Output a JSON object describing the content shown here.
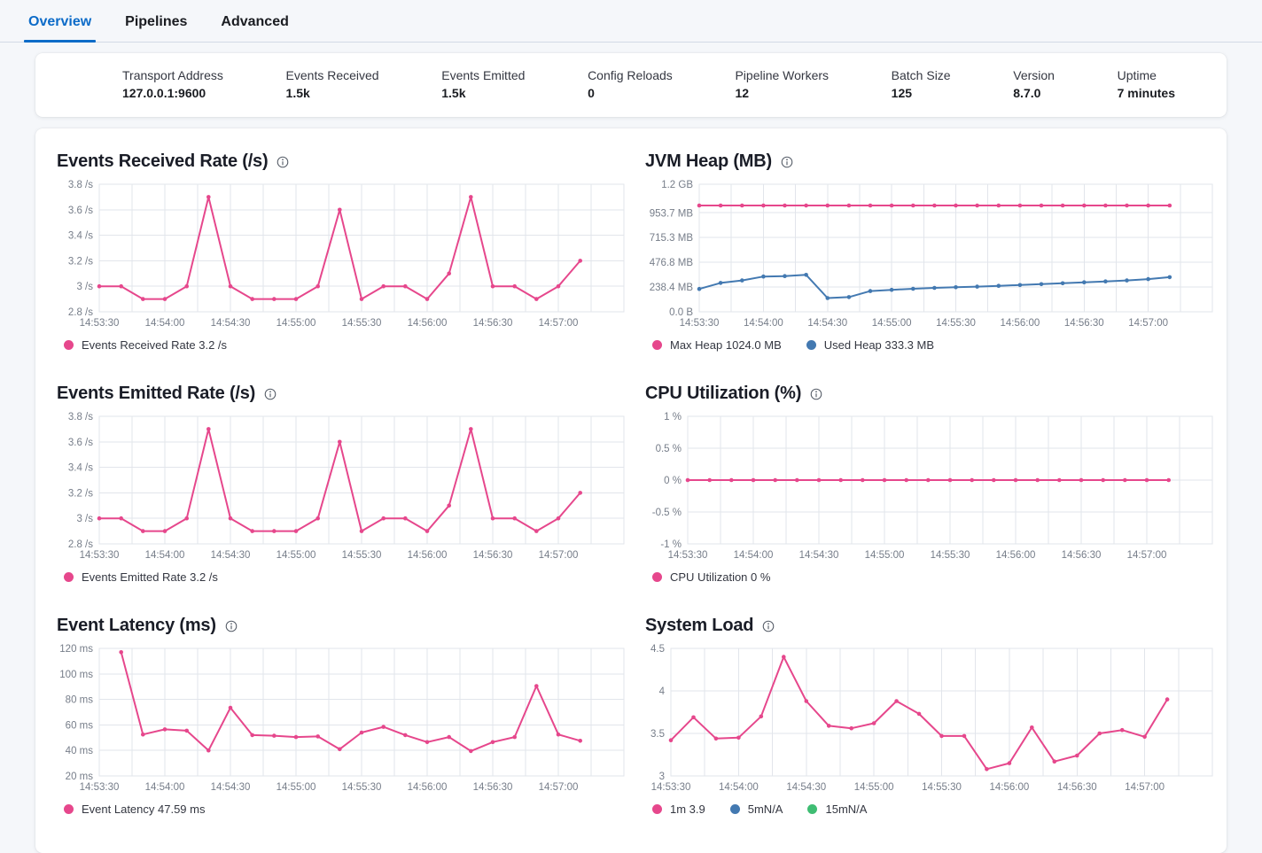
{
  "tabs": [
    {
      "label": "Overview",
      "active": true
    },
    {
      "label": "Pipelines",
      "active": false
    },
    {
      "label": "Advanced",
      "active": false
    }
  ],
  "stats": [
    {
      "label": "Transport Address",
      "value": "127.0.0.1:9600"
    },
    {
      "label": "Events Received",
      "value": "1.5k"
    },
    {
      "label": "Events Emitted",
      "value": "1.5k"
    },
    {
      "label": "Config Reloads",
      "value": "0"
    },
    {
      "label": "Pipeline Workers",
      "value": "12"
    },
    {
      "label": "Batch Size",
      "value": "125"
    },
    {
      "label": "Version",
      "value": "8.7.0"
    },
    {
      "label": "Uptime",
      "value": "7 minutes"
    }
  ],
  "colors": {
    "accent_pink": "#e6478c",
    "series_blue": "#4379b1",
    "series_green": "#3fbd73",
    "tab_active": "#0c6bc8",
    "grid": "#e2e5eb",
    "axis_text": "#767d89"
  },
  "x_axis": {
    "domain_seconds": [
      0,
      240
    ],
    "minor_grid_step": 15,
    "ticks": [
      {
        "s": 0,
        "label": "14:53:30"
      },
      {
        "s": 30,
        "label": "14:54:00"
      },
      {
        "s": 60,
        "label": "14:54:30"
      },
      {
        "s": 90,
        "label": "14:55:00"
      },
      {
        "s": 120,
        "label": "14:55:30"
      },
      {
        "s": 150,
        "label": "14:56:00"
      },
      {
        "s": 180,
        "label": "14:56:30"
      },
      {
        "s": 210,
        "label": "14:57:00"
      }
    ]
  },
  "chart_data": [
    {
      "type": "line",
      "title": "Events Received Rate (/s)",
      "ylim": [
        2.8,
        3.8
      ],
      "y_ticks": [
        {
          "v": 2.8,
          "label": "2.8 /s"
        },
        {
          "v": 3.0,
          "label": "3 /s"
        },
        {
          "v": 3.2,
          "label": "3.2 /s"
        },
        {
          "v": 3.4,
          "label": "3.4 /s"
        },
        {
          "v": 3.6,
          "label": "3.6 /s"
        },
        {
          "v": 3.8,
          "label": "3.8 /s"
        }
      ],
      "series": [
        {
          "name": "Events Received Rate",
          "color": "#e6478c",
          "start": 0,
          "step": 10,
          "values": [
            3,
            3,
            2.9,
            2.9,
            3,
            3.7,
            3,
            2.9,
            2.9,
            2.9,
            3,
            3.6,
            2.9,
            3,
            3,
            2.9,
            3.1,
            3.7,
            3,
            3,
            2.9,
            3,
            3.2
          ]
        }
      ],
      "legend": [
        {
          "label": "Events Received Rate 3.2 /s",
          "color": "#e6478c"
        }
      ]
    },
    {
      "type": "line",
      "title": "JVM Heap (MB)",
      "ylim": [
        0,
        1228.8
      ],
      "y_ticks": [
        {
          "v": 0,
          "label": "0.0 B"
        },
        {
          "v": 238.4,
          "label": "238.4 MB"
        },
        {
          "v": 476.8,
          "label": "476.8 MB"
        },
        {
          "v": 715.3,
          "label": "715.3 MB"
        },
        {
          "v": 953.7,
          "label": "953.7 MB"
        },
        {
          "v": 1228.8,
          "label": "1.2 GB"
        }
      ],
      "series": [
        {
          "name": "Max Heap",
          "color": "#e6478c",
          "start": 0,
          "step": 10,
          "values": [
            1024,
            1024,
            1024,
            1024,
            1024,
            1024,
            1024,
            1024,
            1024,
            1024,
            1024,
            1024,
            1024,
            1024,
            1024,
            1024,
            1024,
            1024,
            1024,
            1024,
            1024,
            1024,
            1024
          ]
        },
        {
          "name": "Used Heap",
          "color": "#4379b1",
          "start": 0,
          "step": 10,
          "values": [
            220,
            278,
            302,
            340,
            344,
            356,
            132,
            142,
            200,
            212,
            222,
            230,
            236,
            242,
            250,
            258,
            266,
            275,
            284,
            293,
            302,
            315,
            333.3
          ]
        }
      ],
      "legend": [
        {
          "label": "Max Heap 1024.0 MB",
          "color": "#e6478c"
        },
        {
          "label": "Used Heap 333.3 MB",
          "color": "#4379b1"
        }
      ]
    },
    {
      "type": "line",
      "title": "Events Emitted Rate (/s)",
      "ylim": [
        2.8,
        3.8
      ],
      "y_ticks": [
        {
          "v": 2.8,
          "label": "2.8 /s"
        },
        {
          "v": 3.0,
          "label": "3 /s"
        },
        {
          "v": 3.2,
          "label": "3.2 /s"
        },
        {
          "v": 3.4,
          "label": "3.4 /s"
        },
        {
          "v": 3.6,
          "label": "3.6 /s"
        },
        {
          "v": 3.8,
          "label": "3.8 /s"
        }
      ],
      "series": [
        {
          "name": "Events Emitted Rate",
          "color": "#e6478c",
          "start": 0,
          "step": 10,
          "values": [
            3,
            3,
            2.9,
            2.9,
            3,
            3.7,
            3,
            2.9,
            2.9,
            2.9,
            3,
            3.6,
            2.9,
            3,
            3,
            2.9,
            3.1,
            3.7,
            3,
            3,
            2.9,
            3,
            3.2
          ]
        }
      ],
      "legend": [
        {
          "label": "Events Emitted Rate 3.2 /s",
          "color": "#e6478c"
        }
      ]
    },
    {
      "type": "line",
      "title": "CPU Utilization (%)",
      "ylim": [
        -1,
        1
      ],
      "y_ticks": [
        {
          "v": -1,
          "label": "-1 %"
        },
        {
          "v": -0.5,
          "label": "-0.5 %"
        },
        {
          "v": 0,
          "label": "0 %"
        },
        {
          "v": 0.5,
          "label": "0.5 %"
        },
        {
          "v": 1,
          "label": "1 %"
        }
      ],
      "series": [
        {
          "name": "CPU Utilization",
          "color": "#e6478c",
          "start": 0,
          "step": 10,
          "values": [
            0,
            0,
            0,
            0,
            0,
            0,
            0,
            0,
            0,
            0,
            0,
            0,
            0,
            0,
            0,
            0,
            0,
            0,
            0,
            0,
            0,
            0,
            0
          ]
        }
      ],
      "legend": [
        {
          "label": "CPU Utilization 0 %",
          "color": "#e6478c"
        }
      ]
    },
    {
      "type": "line",
      "title": "Event Latency (ms)",
      "ylim": [
        20,
        120
      ],
      "y_ticks": [
        {
          "v": 20,
          "label": "20 ms"
        },
        {
          "v": 40,
          "label": "40 ms"
        },
        {
          "v": 60,
          "label": "60 ms"
        },
        {
          "v": 80,
          "label": "80 ms"
        },
        {
          "v": 100,
          "label": "100 ms"
        },
        {
          "v": 120,
          "label": "120 ms"
        }
      ],
      "series": [
        {
          "name": "Event Latency",
          "color": "#e6478c",
          "start": 10,
          "step": 10,
          "values": [
            117,
            52.5,
            56.5,
            55.5,
            40,
            73.5,
            52,
            51.5,
            50.5,
            51,
            41,
            54,
            58.5,
            52,
            46.5,
            50.5,
            39.5,
            46.5,
            50.5,
            90.5,
            52.5,
            47.59
          ]
        }
      ],
      "legend": [
        {
          "label": "Event Latency 47.59 ms",
          "color": "#e6478c"
        }
      ]
    },
    {
      "type": "line",
      "title": "System Load",
      "ylim": [
        3,
        4.5
      ],
      "y_ticks": [
        {
          "v": 3,
          "label": "3"
        },
        {
          "v": 3.5,
          "label": "3.5"
        },
        {
          "v": 4,
          "label": "4"
        },
        {
          "v": 4.5,
          "label": "4.5"
        }
      ],
      "series": [
        {
          "name": "1m",
          "color": "#e6478c",
          "start": 0,
          "step": 10,
          "values": [
            3.42,
            3.69,
            3.44,
            3.45,
            3.7,
            4.4,
            3.88,
            3.59,
            3.56,
            3.62,
            3.88,
            3.73,
            3.47,
            3.47,
            3.08,
            3.15,
            3.57,
            3.17,
            3.24,
            3.5,
            3.54,
            3.46,
            3.9
          ]
        }
      ],
      "legend": [
        {
          "label": "1m 3.9",
          "color": "#e6478c"
        },
        {
          "label": "5mN/A",
          "color": "#4379b1"
        },
        {
          "label": "15mN/A",
          "color": "#3fbd73"
        }
      ]
    }
  ]
}
